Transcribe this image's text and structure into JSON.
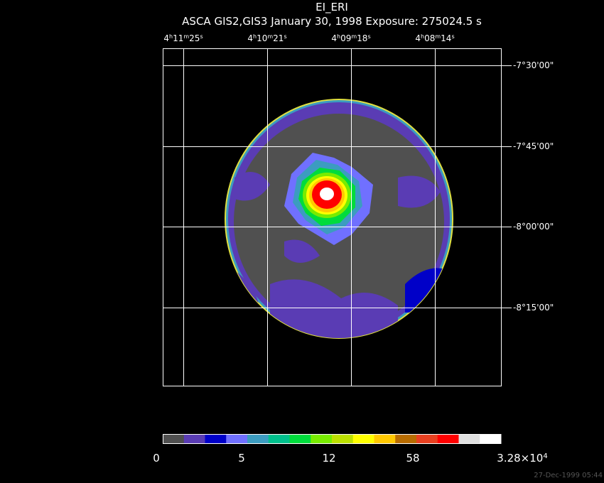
{
  "title": "EI_ERI",
  "subtitle": "ASCA GIS2,GIS3 January 30, 1998 Exposure: 275024.5 s",
  "ra_units": [
    "h",
    "m",
    "s"
  ],
  "ra_labels": [
    {
      "hours": "4",
      "minutes": "11",
      "seconds": "25"
    },
    {
      "hours": "4",
      "minutes": "10",
      "seconds": "21"
    },
    {
      "hours": "4",
      "minutes": "09",
      "seconds": "18"
    },
    {
      "hours": "4",
      "minutes": "08",
      "seconds": "14"
    }
  ],
  "dec_labels": [
    "-7°30'00\"",
    "-7°45'00\"",
    "-8°00'00\"",
    "-8°15'00\""
  ],
  "colorbar": {
    "colors": [
      "#505050",
      "#5a3cb4",
      "#0000c8",
      "#7070ff",
      "#3c9cc0",
      "#00c08c",
      "#00dc3c",
      "#78ec00",
      "#bce000",
      "#ffff00",
      "#ffc800",
      "#b86c00",
      "#e84020",
      "#ff0000",
      "#e0e0e0",
      "#ffffff"
    ],
    "labels": [
      {
        "text": "0"
      },
      {
        "text": "5"
      },
      {
        "text": "12"
      },
      {
        "text": "58"
      },
      {
        "mantissa": "3.28×10",
        "exponent": "4"
      }
    ]
  },
  "timestamp": "27-Dec-1999 05:44"
}
